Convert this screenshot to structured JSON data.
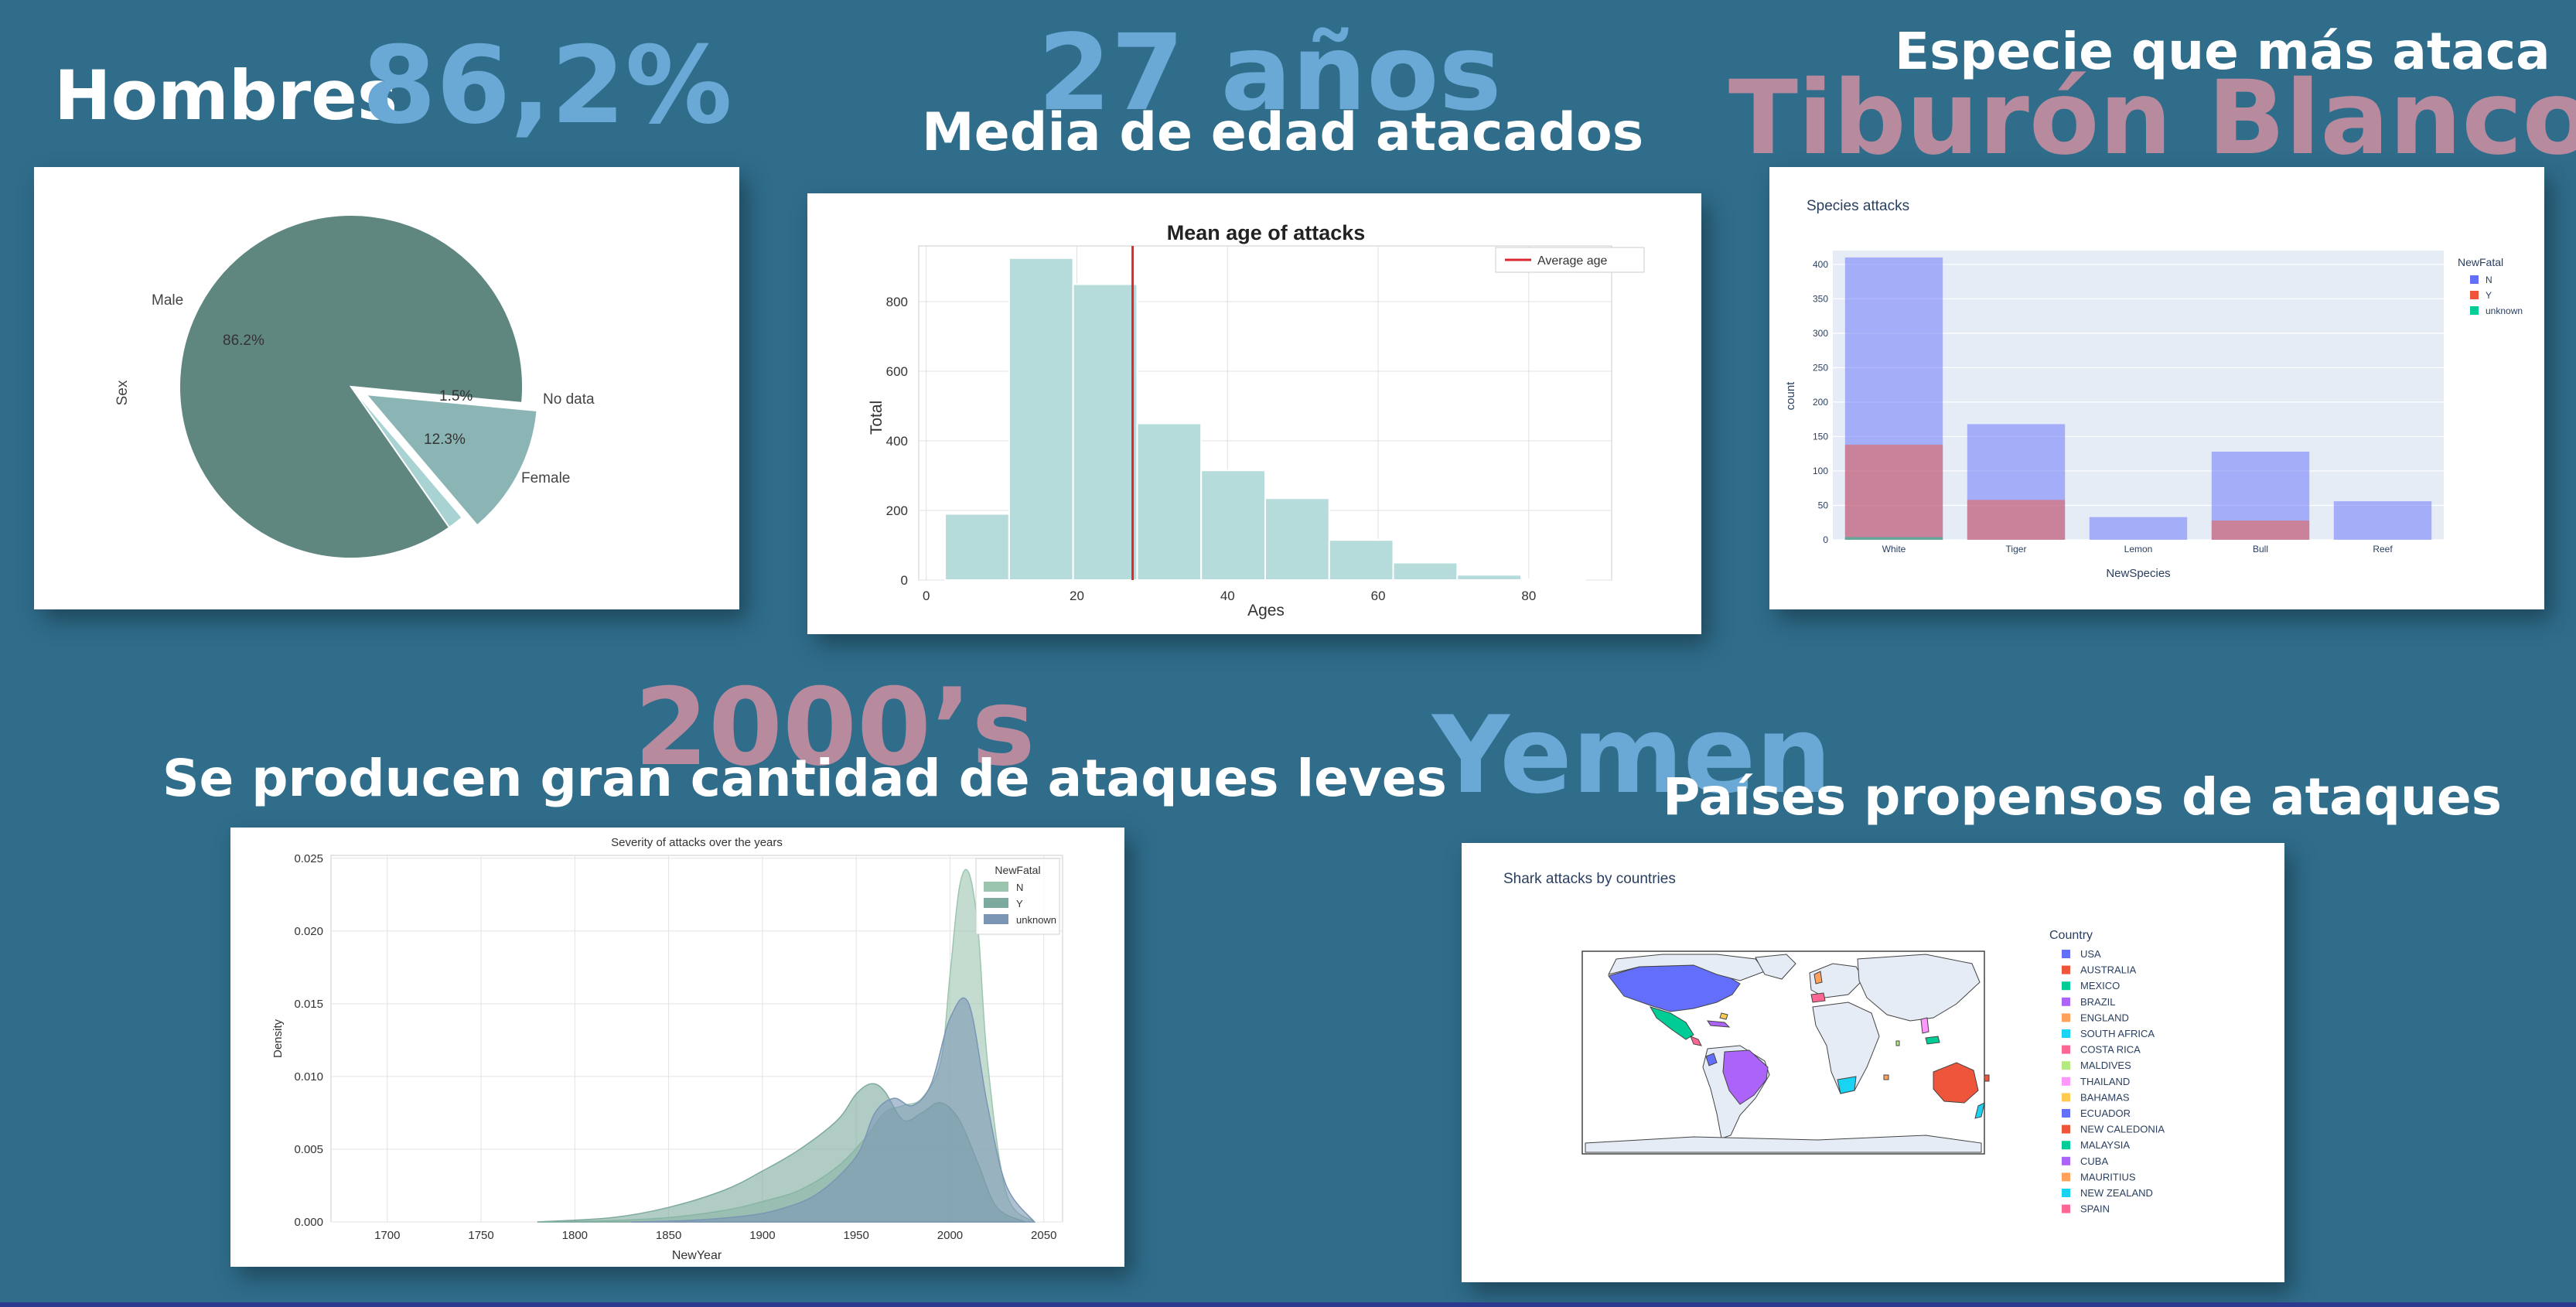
{
  "headlines": {
    "sex_label": "Hombres",
    "sex_value": "86,2%",
    "age_value": "27 años",
    "age_label": "Media de edad atacados",
    "species_label": "Especie que más ataca",
    "species_value": "Tiburón Blanco",
    "decade_value": "2000’s",
    "decade_label": "Se producen gran cantidad de ataques leves",
    "country_value": "Yemen",
    "country_label": "Países propensos de ataques"
  },
  "colors": {
    "background": "#2f6d8b",
    "pie_male": "#5f8780",
    "pie_female": "#8bb5b4",
    "pie_nodata": "#a9d3d3",
    "hist_bar": "#b5dcda",
    "avg_line": "#d9282f",
    "plotly_N": "#636efa",
    "plotly_Y": "#ef553b",
    "plotly_unknown": "#00cc96",
    "kde_N": "#9cc5b0",
    "kde_Y": "#7daa9f",
    "kde_unknown": "#7b96b5"
  },
  "chart_data": [
    {
      "type": "pie",
      "ylabel": "Sex",
      "slices": [
        {
          "label": "Male",
          "value": 86.2,
          "pct_label": "86.2%"
        },
        {
          "label": "Female",
          "value": 12.3,
          "pct_label": "12.3%"
        },
        {
          "label": "No data",
          "value": 1.5,
          "pct_label": "1.5%"
        }
      ]
    },
    {
      "type": "bar",
      "title": "Mean age of attacks",
      "xlabel": "Ages",
      "ylabel": "Total",
      "legend": [
        "Average age"
      ],
      "legend_position": "top-right",
      "average": 27.4,
      "xlim": [
        -1,
        91
      ],
      "ylim": [
        0,
        960
      ],
      "x_ticks": [
        0,
        20,
        40,
        60,
        80
      ],
      "y_ticks": [
        0,
        200,
        400,
        600,
        800
      ],
      "bins": [
        {
          "start": 2.5,
          "end": 11,
          "value": 190
        },
        {
          "start": 11,
          "end": 19.5,
          "value": 925
        },
        {
          "start": 19.5,
          "end": 28,
          "value": 850
        },
        {
          "start": 28,
          "end": 36.5,
          "value": 450
        },
        {
          "start": 36.5,
          "end": 45,
          "value": 315
        },
        {
          "start": 45,
          "end": 53.5,
          "value": 235
        },
        {
          "start": 53.5,
          "end": 62,
          "value": 115
        },
        {
          "start": 62,
          "end": 70.5,
          "value": 50
        },
        {
          "start": 70.5,
          "end": 79,
          "value": 15
        },
        {
          "start": 79,
          "end": 87.5,
          "value": 3
        }
      ],
      "grid": true
    },
    {
      "type": "bar",
      "title": "Species attacks",
      "xlabel": "NewSpecies",
      "ylabel": "count",
      "legend_title": "NewFatal",
      "legend_position": "right",
      "categories": [
        "White",
        "Tiger",
        "Lemon",
        "Bull",
        "Reef"
      ],
      "series": [
        {
          "name": "N",
          "values": [
            410,
            168,
            33,
            128,
            56
          ]
        },
        {
          "name": "Y",
          "values": [
            138,
            58,
            0,
            28,
            0
          ]
        },
        {
          "name": "unknown",
          "values": [
            4,
            0,
            0,
            0,
            0
          ]
        }
      ],
      "y_ticks": [
        0,
        50,
        100,
        150,
        200,
        250,
        300,
        350,
        400
      ],
      "ylim": [
        0,
        420
      ]
    },
    {
      "type": "area",
      "title": "Severity of attacks over the years",
      "xlabel": "NewYear",
      "ylabel": "Density",
      "legend_title": "NewFatal",
      "legend_position": "top-right",
      "xlim": [
        1670,
        2060
      ],
      "ylim": [
        0,
        0.0252
      ],
      "x_ticks": [
        1700,
        1750,
        1800,
        1850,
        1900,
        1950,
        2000,
        2050
      ],
      "y_ticks": [
        "0.000",
        "0.005",
        "0.010",
        "0.015",
        "0.020",
        "0.025"
      ],
      "series": [
        {
          "name": "N",
          "x": [
            1780,
            1820,
            1850,
            1880,
            1900,
            1920,
            1940,
            1955,
            1965,
            1975,
            1985,
            1995,
            2000,
            2005,
            2010,
            2015,
            2020,
            2030,
            2045
          ],
          "values": [
            0,
            0.0001,
            0.0003,
            0.0008,
            0.0014,
            0.0022,
            0.0038,
            0.0058,
            0.0075,
            0.008,
            0.0085,
            0.011,
            0.017,
            0.023,
            0.024,
            0.02,
            0.011,
            0.002,
            0
          ]
        },
        {
          "name": "Y",
          "x": [
            1780,
            1820,
            1850,
            1880,
            1900,
            1920,
            1940,
            1950,
            1958,
            1965,
            1975,
            1985,
            1995,
            2005,
            2015,
            2025,
            2040
          ],
          "values": [
            0,
            0.0003,
            0.001,
            0.0022,
            0.0035,
            0.005,
            0.007,
            0.0088,
            0.0095,
            0.009,
            0.007,
            0.0075,
            0.0082,
            0.007,
            0.004,
            0.001,
            0
          ]
        },
        {
          "name": "unknown",
          "x": [
            1830,
            1860,
            1890,
            1910,
            1930,
            1950,
            1960,
            1970,
            1980,
            1990,
            2000,
            2010,
            2020,
            2030,
            2045
          ],
          "values": [
            0,
            0.0001,
            0.0004,
            0.0009,
            0.002,
            0.0045,
            0.0075,
            0.0085,
            0.008,
            0.0095,
            0.014,
            0.015,
            0.008,
            0.0025,
            0
          ]
        }
      ],
      "grid": true
    },
    {
      "type": "map",
      "title": "Shark attacks by countries",
      "legend_title": "Country",
      "legend_position": "right",
      "countries": [
        {
          "name": "USA",
          "color": "#636efa"
        },
        {
          "name": "AUSTRALIA",
          "color": "#ef553b"
        },
        {
          "name": "MEXICO",
          "color": "#00cc96"
        },
        {
          "name": "BRAZIL",
          "color": "#ab63fa"
        },
        {
          "name": "ENGLAND",
          "color": "#ffa15a"
        },
        {
          "name": "SOUTH AFRICA",
          "color": "#19d3f3"
        },
        {
          "name": "COSTA RICA",
          "color": "#ff6692"
        },
        {
          "name": "MALDIVES",
          "color": "#b6e880"
        },
        {
          "name": "THAILAND",
          "color": "#ff97ff"
        },
        {
          "name": "BAHAMAS",
          "color": "#fecb52"
        },
        {
          "name": "ECUADOR",
          "color": "#636efa"
        },
        {
          "name": "NEW CALEDONIA",
          "color": "#ef553b"
        },
        {
          "name": "MALAYSIA",
          "color": "#00cc96"
        },
        {
          "name": "CUBA",
          "color": "#ab63fa"
        },
        {
          "name": "MAURITIUS",
          "color": "#ffa15a"
        },
        {
          "name": "NEW ZEALAND",
          "color": "#19d3f3"
        },
        {
          "name": "SPAIN",
          "color": "#ff6692"
        }
      ]
    }
  ]
}
